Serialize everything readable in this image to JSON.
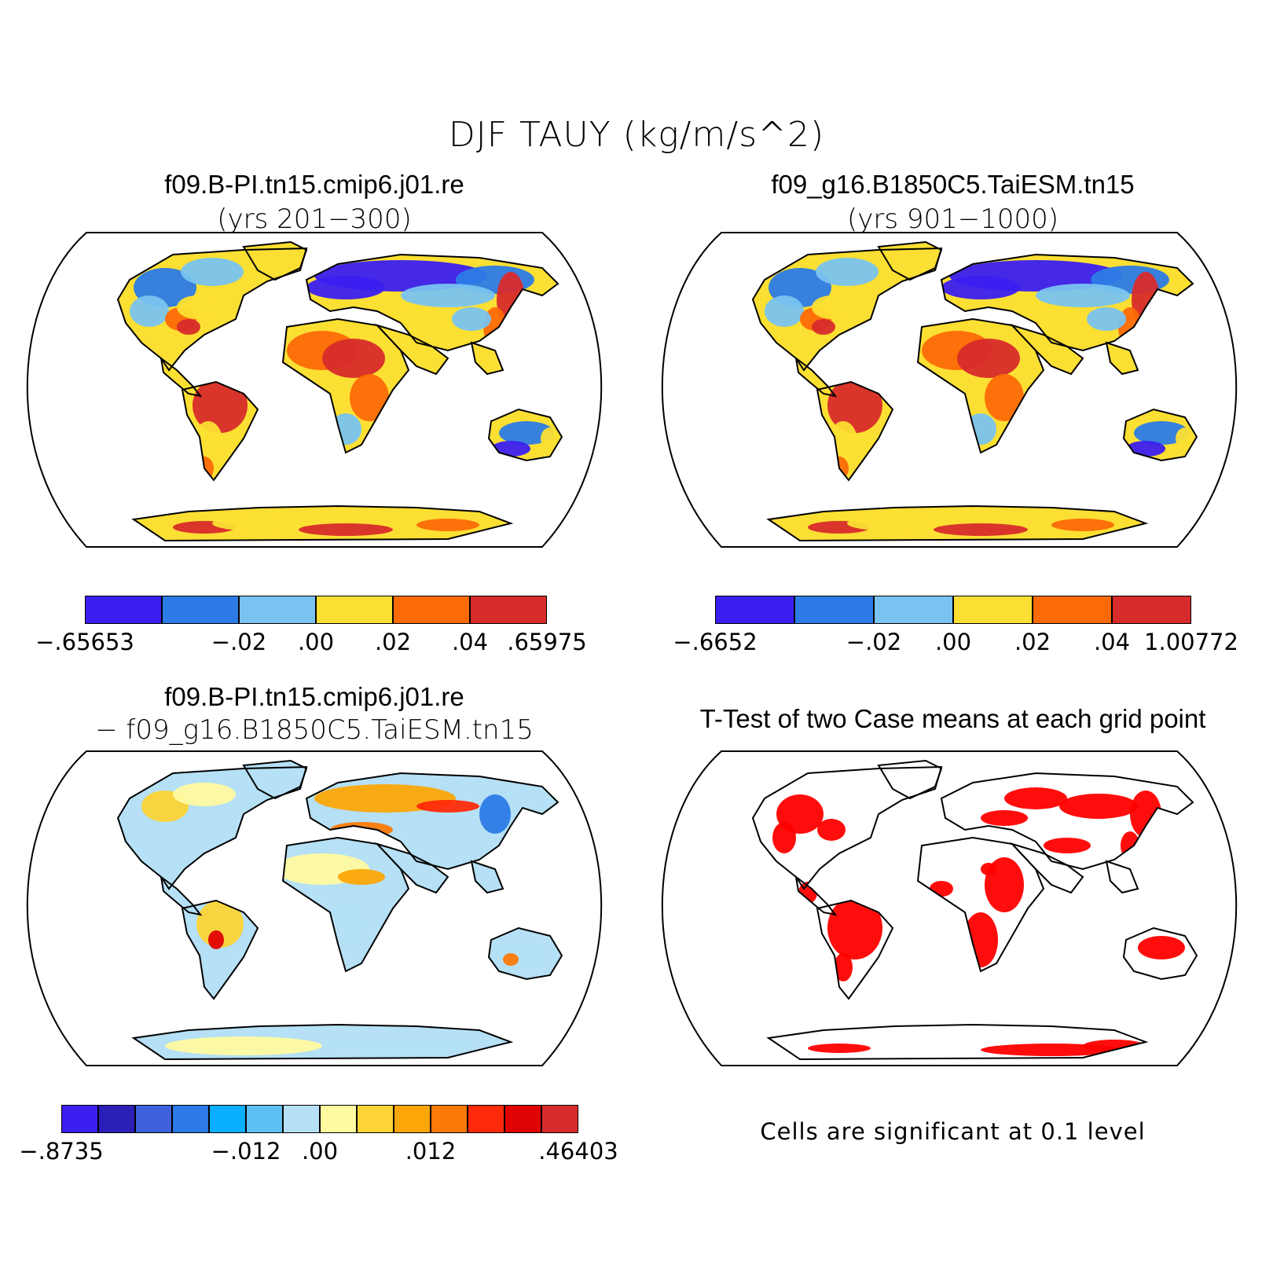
{
  "figure": {
    "title": "DJF TAUY (kg/m/s^2)"
  },
  "panels": [
    {
      "id": "case1",
      "title": "f09.B-PI.tn15.cmip6.j01.re",
      "subtitle": "(yrs 201−300)",
      "colorbar": {
        "colors": [
          "#3b1ff0",
          "#2c7be6",
          "#79c3f0",
          "#fcdf33",
          "#fc6a07",
          "#d82b2b"
        ],
        "labels": [
          "−.65653",
          "−.02",
          ".00",
          ".02",
          ".04",
          ".65975"
        ]
      }
    },
    {
      "id": "case2",
      "title": "f09_g16.B1850C5.TaiESM.tn15",
      "subtitle": "(yrs 901−1000)",
      "colorbar": {
        "colors": [
          "#3b1ff0",
          "#2c7be6",
          "#79c3f0",
          "#fcdf33",
          "#fc6a07",
          "#d82b2b"
        ],
        "labels": [
          "−.6652",
          "−.02",
          ".00",
          ".02",
          ".04",
          "1.00772"
        ]
      }
    },
    {
      "id": "diff",
      "title": "f09.B-PI.tn15.cmip6.j01.re",
      "subtitle": "− f09_g16.B1850C5.TaiESM.tn15",
      "colorbar": {
        "colors": [
          "#3b1ff0",
          "#2b1fb8",
          "#3f62dc",
          "#2c7be6",
          "#0aafff",
          "#5ec0f2",
          "#b5e0f5",
          "#fffaa0",
          "#fcd436",
          "#fca607",
          "#fc7a07",
          "#ff2a0a",
          "#e00303",
          "#d82b2b"
        ],
        "labels": [
          "−.8735",
          "−.012",
          ".00",
          ".012",
          ".46403"
        ]
      }
    },
    {
      "id": "ttest",
      "title": "T-Test of two Case means at each grid point",
      "note": "Cells are significant at 0.1 level"
    }
  ],
  "map_style": {
    "projection": "robinson",
    "coastline_color": "#000000",
    "significance_color": "#ff0000"
  }
}
